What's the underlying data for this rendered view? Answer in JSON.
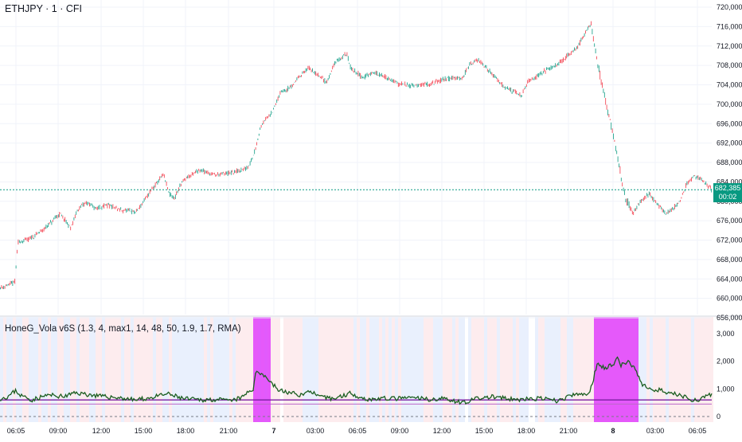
{
  "header": {
    "title": "ETHJPY · 1 · CFI"
  },
  "indicator": {
    "title": "HoneG_Vola v6S (1.3, 4, max1, 14, 48, 50, 1.9, 1.7, RMA)"
  },
  "last_price": {
    "value": "682,385",
    "countdown": "00:02"
  },
  "colors": {
    "up": "#089981",
    "down": "#f23645",
    "highlight": "#e040fb",
    "line": "#1b5e20",
    "purple": "#7b1fa2",
    "grid": "#f0f3fa",
    "bg_red": "#fde7ea",
    "bg_blue": "#e3ecfd"
  },
  "chart_data": [
    {
      "type": "candlestick",
      "title": "ETHJPY · 1 · CFI",
      "ylim": [
        656000,
        720000
      ],
      "y_ticks": [
        "720,000",
        "716,000",
        "712,000",
        "708,000",
        "704,000",
        "700,000",
        "696,000",
        "692,000",
        "688,000",
        "684,000",
        "680,000",
        "676,000",
        "672,000",
        "668,000",
        "664,000",
        "660,000",
        "656,000"
      ],
      "x_ticks": [
        "06:05",
        "09:00",
        "12:00",
        "15:00",
        "18:00",
        "21:00",
        "7",
        "03:00",
        "06:05",
        "09:00",
        "12:00",
        "15:00",
        "18:00",
        "21:00",
        "8",
        "03:00",
        "06:05"
      ],
      "close_path": [
        [
          0,
          662200
        ],
        [
          10,
          662800
        ],
        [
          18,
          663200
        ],
        [
          22,
          671500
        ],
        [
          40,
          672500
        ],
        [
          60,
          675000
        ],
        [
          75,
          677500
        ],
        [
          88,
          674500
        ],
        [
          98,
          678500
        ],
        [
          108,
          679800
        ],
        [
          120,
          678500
        ],
        [
          135,
          679200
        ],
        [
          150,
          678200
        ],
        [
          170,
          677800
        ],
        [
          178,
          679500
        ],
        [
          190,
          682500
        ],
        [
          205,
          685500
        ],
        [
          212,
          681500
        ],
        [
          218,
          680500
        ],
        [
          230,
          684500
        ],
        [
          250,
          686500
        ],
        [
          268,
          685500
        ],
        [
          290,
          685800
        ],
        [
          310,
          686800
        ],
        [
          318,
          689500
        ],
        [
          328,
          696000
        ],
        [
          342,
          698500
        ],
        [
          352,
          702500
        ],
        [
          365,
          703500
        ],
        [
          375,
          705800
        ],
        [
          388,
          707500
        ],
        [
          400,
          705800
        ],
        [
          410,
          704500
        ],
        [
          420,
          708500
        ],
        [
          435,
          710500
        ],
        [
          440,
          707500
        ],
        [
          455,
          705500
        ],
        [
          470,
          706500
        ],
        [
          485,
          705500
        ],
        [
          500,
          704200
        ],
        [
          520,
          703800
        ],
        [
          540,
          704200
        ],
        [
          560,
          705200
        ],
        [
          580,
          705500
        ],
        [
          590,
          708200
        ],
        [
          600,
          709200
        ],
        [
          610,
          707500
        ],
        [
          620,
          705800
        ],
        [
          632,
          703800
        ],
        [
          642,
          702800
        ],
        [
          655,
          701800
        ],
        [
          662,
          704500
        ],
        [
          680,
          706500
        ],
        [
          700,
          708300
        ],
        [
          715,
          710300
        ],
        [
          725,
          711800
        ],
        [
          735,
          714800
        ],
        [
          742,
          716800
        ],
        [
          748,
          710500
        ],
        [
          755,
          704500
        ],
        [
          762,
          699500
        ],
        [
          770,
          693500
        ],
        [
          778,
          686500
        ],
        [
          785,
          680500
        ],
        [
          795,
          677500
        ],
        [
          805,
          680200
        ],
        [
          815,
          681500
        ],
        [
          825,
          679500
        ],
        [
          835,
          677500
        ],
        [
          845,
          678500
        ],
        [
          855,
          680500
        ],
        [
          862,
          683500
        ],
        [
          870,
          685200
        ],
        [
          880,
          684500
        ],
        [
          894,
          682385
        ]
      ],
      "last_price": 682385
    },
    {
      "type": "line",
      "title": "HoneG_Vola v6S (1.3, 4, max1, 14, 48, 50, 1.9, 1.7, RMA)",
      "ylim": [
        -200,
        3600
      ],
      "y_ticks": [
        "3,000",
        "2,000",
        "1,000",
        "0"
      ],
      "series_path": [
        [
          0,
          650
        ],
        [
          10,
          720
        ],
        [
          20,
          950
        ],
        [
          25,
          780
        ],
        [
          40,
          600
        ],
        [
          60,
          780
        ],
        [
          80,
          720
        ],
        [
          95,
          860
        ],
        [
          110,
          800
        ],
        [
          130,
          720
        ],
        [
          150,
          680
        ],
        [
          170,
          600
        ],
        [
          190,
          680
        ],
        [
          210,
          820
        ],
        [
          230,
          650
        ],
        [
          250,
          600
        ],
        [
          270,
          620
        ],
        [
          290,
          560
        ],
        [
          305,
          700
        ],
        [
          312,
          900
        ],
        [
          318,
          1000
        ],
        [
          322,
          1650
        ],
        [
          330,
          1550
        ],
        [
          340,
          1250
        ],
        [
          350,
          950
        ],
        [
          365,
          850
        ],
        [
          380,
          780
        ],
        [
          390,
          950
        ],
        [
          400,
          700
        ],
        [
          420,
          650
        ],
        [
          440,
          850
        ],
        [
          460,
          620
        ],
        [
          480,
          650
        ],
        [
          500,
          650
        ],
        [
          520,
          680
        ],
        [
          540,
          620
        ],
        [
          560,
          650
        ],
        [
          580,
          500
        ],
        [
          600,
          650
        ],
        [
          620,
          720
        ],
        [
          640,
          620
        ],
        [
          660,
          620
        ],
        [
          680,
          650
        ],
        [
          700,
          560
        ],
        [
          720,
          780
        ],
        [
          740,
          820
        ],
        [
          745,
          1300
        ],
        [
          750,
          1950
        ],
        [
          760,
          1750
        ],
        [
          770,
          1900
        ],
        [
          776,
          2150
        ],
        [
          780,
          1850
        ],
        [
          790,
          2000
        ],
        [
          800,
          1600
        ],
        [
          805,
          1200
        ],
        [
          815,
          1000
        ],
        [
          830,
          950
        ],
        [
          840,
          820
        ],
        [
          850,
          800
        ],
        [
          860,
          720
        ],
        [
          870,
          600
        ],
        [
          880,
          620
        ],
        [
          894,
          800
        ]
      ],
      "level_lines": [
        600,
        450,
        0
      ],
      "highlight_zones": [
        [
          318,
          340
        ],
        [
          746,
          802
        ]
      ]
    }
  ]
}
